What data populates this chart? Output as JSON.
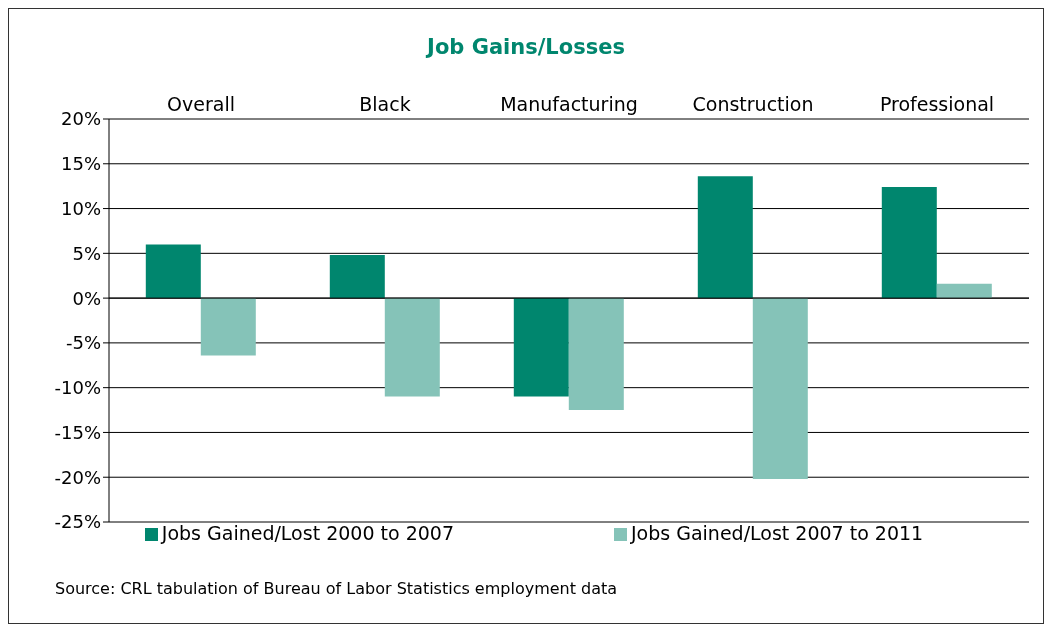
{
  "chart_data": {
    "type": "bar",
    "title": "Job Gains/Losses",
    "categories": [
      "Overall",
      "Black",
      "Manufacturing",
      "Construction",
      "Professional"
    ],
    "series": [
      {
        "name": "Jobs Gained/Lost 2000 to 2007",
        "color": "#00866e",
        "values": [
          6.0,
          4.8,
          -11.0,
          13.6,
          12.4
        ]
      },
      {
        "name": "Jobs Gained/Lost 2007 to 2011",
        "color": "#85c3b8",
        "values": [
          -6.4,
          -11.0,
          -12.5,
          -20.2,
          1.6
        ]
      }
    ],
    "ylim": [
      -25,
      20
    ],
    "yticks": [
      {
        "value": -25,
        "label": "-25%"
      },
      {
        "value": -20,
        "label": "-20%"
      },
      {
        "value": -15,
        "label": "-15%"
      },
      {
        "value": -10,
        "label": "-10%"
      },
      {
        "value": -5,
        "label": "-5%"
      },
      {
        "value": 0,
        "label": "0%"
      },
      {
        "value": 5,
        "label": "5%"
      },
      {
        "value": 10,
        "label": "10%"
      },
      {
        "value": 15,
        "label": "15%"
      },
      {
        "value": 20,
        "label": "20%"
      }
    ],
    "grid": "y",
    "legend": "bottom",
    "annotations": [
      "Source: CRL tabulation of Bureau of Labor Statistics employment data"
    ]
  }
}
